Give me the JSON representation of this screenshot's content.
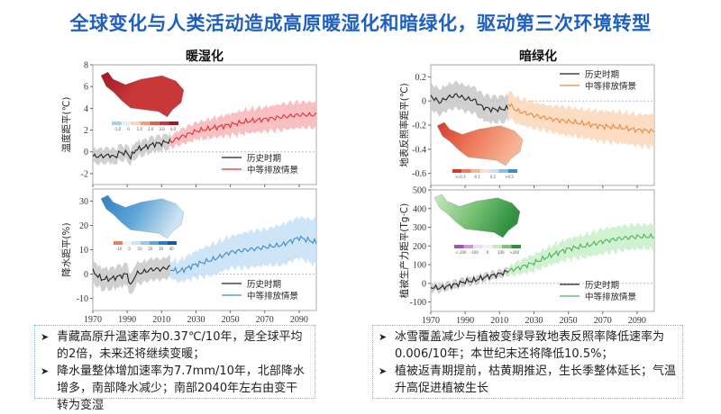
{
  "title": "全球变化与人类活动造成高原暖湿化和暗绿化，驱动第三次环境转型",
  "left_section": {
    "subtitle": "暖湿化"
  },
  "right_section": {
    "subtitle": "暗绿化"
  },
  "legend_labels": {
    "historical": "历史时期",
    "scenario": "中等排放情景"
  },
  "chart_data": [
    {
      "id": "temp",
      "type": "line",
      "ylabel": "温度距平(℃)",
      "xlim": [
        1970,
        2100
      ],
      "ylim": [
        -3,
        8
      ],
      "yticks": [
        "-2",
        "0",
        "2",
        "4",
        "6",
        "8"
      ],
      "xticks": [
        "1970",
        "1990",
        "2010",
        "2030",
        "2050",
        "2070",
        "2090"
      ],
      "legend": "bottom-right",
      "color": "#e03030",
      "band_color": "#f7b5b8",
      "historical": {
        "x": [
          1970,
          1975,
          1980,
          1983,
          1985,
          1990,
          1992,
          1995,
          2000,
          2005,
          2010,
          2015
        ],
        "y": [
          -0.4,
          -0.4,
          -0.3,
          -0.5,
          -0.1,
          -0.1,
          -0.5,
          0.2,
          0.4,
          0.7,
          0.8,
          1.0
        ],
        "band": 0.6
      },
      "scenario": {
        "x": [
          2015,
          2020,
          2030,
          2040,
          2050,
          2060,
          2070,
          2080,
          2090,
          2100
        ],
        "y": [
          0.9,
          1.3,
          1.9,
          2.2,
          2.5,
          2.8,
          3.0,
          3.2,
          3.4,
          3.4
        ],
        "band": [
          0.4,
          0.6,
          0.7,
          0.8,
          0.9,
          1.0,
          1.0,
          1.1,
          1.1,
          1.1
        ]
      },
      "inset_colorbar": {
        "ticks": [
          "-1.0",
          "0",
          "1.0",
          "2.0",
          "3.0",
          "4.0"
        ],
        "colors": [
          "#a9cfe8",
          "#e8eef5",
          "#f7d3c0",
          "#f0a080",
          "#e06050",
          "#c83838",
          "#a01828"
        ]
      }
    },
    {
      "id": "precip",
      "type": "line",
      "ylabel": "降水距平(%)",
      "xlim": [
        1970,
        2100
      ],
      "ylim": [
        -15,
        35
      ],
      "yticks": [
        "-10",
        "0",
        "10",
        "20",
        "30"
      ],
      "xticks": [
        "1970",
        "1990",
        "2010",
        "2030",
        "2050",
        "2070",
        "2090"
      ],
      "legend": "bottom-right",
      "color": "#3a8cc8",
      "band_color": "#c6e1f7",
      "historical": {
        "x": [
          1970,
          1975,
          1980,
          1985,
          1990,
          1992,
          1995,
          2000,
          2005,
          2010,
          2015
        ],
        "y": [
          1,
          -2,
          -2,
          -1,
          0,
          -5,
          0,
          1,
          2,
          2,
          3
        ],
        "band": 4
      },
      "scenario": {
        "x": [
          2015,
          2020,
          2030,
          2040,
          2050,
          2060,
          2070,
          2080,
          2090,
          2100
        ],
        "y": [
          2,
          1,
          4,
          6,
          9,
          10,
          11,
          12,
          15,
          13
        ],
        "band": [
          3,
          4,
          5,
          6,
          6,
          7,
          7,
          8,
          8,
          9
        ]
      },
      "inset_colorbar": {
        "ticks": [
          "-10",
          "0",
          "10",
          "20",
          "30",
          "40"
        ],
        "colors": [
          "#e88060",
          "#f4f4f4",
          "#cfe3f2",
          "#9cc8e6",
          "#5ea6d6",
          "#2f7fc0",
          "#1558a0"
        ]
      }
    },
    {
      "id": "albedo",
      "type": "line",
      "ylabel": "地表反照率距平(℃)",
      "xlim": [
        1970,
        2100
      ],
      "ylim": [
        -0.7,
        0.3
      ],
      "yticks": [
        "-0.6",
        "-0.4",
        "-0.2",
        "0",
        "0.2"
      ],
      "xticks": [
        "1970",
        "1990",
        "2010",
        "2030",
        "2050",
        "2070",
        "2090"
      ],
      "legend": "top-right",
      "color": "#e8893a",
      "band_color": "#fbd7b8",
      "historical": {
        "x": [
          1970,
          1975,
          1980,
          1985,
          1990,
          1995,
          2000,
          2005,
          2010,
          2015
        ],
        "y": [
          0.04,
          -0.01,
          0.03,
          0.05,
          0.02,
          0.01,
          -0.05,
          -0.07,
          -0.07,
          -0.06
        ],
        "band": 0.1
      },
      "scenario": {
        "x": [
          2015,
          2020,
          2030,
          2040,
          2050,
          2060,
          2070,
          2080,
          2090,
          2100
        ],
        "y": [
          -0.02,
          -0.08,
          -0.12,
          -0.15,
          -0.17,
          -0.19,
          -0.21,
          -0.22,
          -0.24,
          -0.25
        ],
        "band": [
          0.1,
          0.1,
          0.1,
          0.1,
          0.11,
          0.11,
          0.12,
          0.12,
          0.12,
          0.13
        ]
      },
      "inset_colorbar": {
        "ticks": [
          "<-0.3",
          "-0.1",
          "0.1",
          ">0.3"
        ],
        "colors": [
          "#d63a2a",
          "#ec7a5a",
          "#f6b494",
          "#fbe0cc",
          "#c6e0f0",
          "#8cc0e2",
          "#3f8cc6"
        ]
      }
    },
    {
      "id": "npp",
      "type": "line",
      "ylabel": "植被生产力距平(Tg·C)",
      "xlim": [
        1970,
        2100
      ],
      "ylim": [
        -150,
        500
      ],
      "yticks": [
        "-100",
        "0",
        "100",
        "200",
        "300",
        "400",
        "500"
      ],
      "xticks": [
        "1970",
        "1990",
        "2010",
        "2030",
        "2050",
        "2070",
        "2090"
      ],
      "legend": "bottom-right",
      "color": "#4fb060",
      "band_color": "#c8f0c8",
      "historical": {
        "x": [
          1970,
          1975,
          1980,
          1985,
          1990,
          1995,
          2000,
          2005,
          2010,
          2015
        ],
        "y": [
          -20,
          -25,
          -15,
          -5,
          10,
          15,
          30,
          40,
          50,
          65
        ],
        "band": 15
      },
      "scenario": {
        "x": [
          2015,
          2020,
          2030,
          2040,
          2050,
          2060,
          2070,
          2080,
          2090,
          2100
        ],
        "y": [
          65,
          80,
          110,
          150,
          185,
          200,
          225,
          240,
          250,
          250
        ],
        "band": [
          20,
          30,
          40,
          45,
          50,
          55,
          60,
          60,
          60,
          60
        ]
      },
      "inset_colorbar": {
        "ticks": [
          "<-200",
          "-100",
          "0",
          "100",
          ">200"
        ],
        "colors": [
          "#9a58b0",
          "#c89ad4",
          "#ecdcf0",
          "#f2f2f2",
          "#c8e8c0",
          "#7cc478",
          "#2e9040"
        ]
      }
    }
  ],
  "left_box": {
    "items": [
      "青藏高原升温速率为0.37℃/10年，是全球平均的2倍，未来还将继续变暖；",
      "降水量整体增加速率为7.7mm/10年，北部降水增多，南部降水减少；南部2040年左右由变干转为变湿"
    ]
  },
  "right_box": {
    "items": [
      "冰雪覆盖减少与植被变绿导致地表反照率降低速率为0.006/10年；本世纪末还将降低10.5%；",
      "植被返青期提前，枯黄期推迟，生长季整体延长；气温升高促进植被生长"
    ]
  },
  "bullet_icon": "arrowhead-bullet"
}
